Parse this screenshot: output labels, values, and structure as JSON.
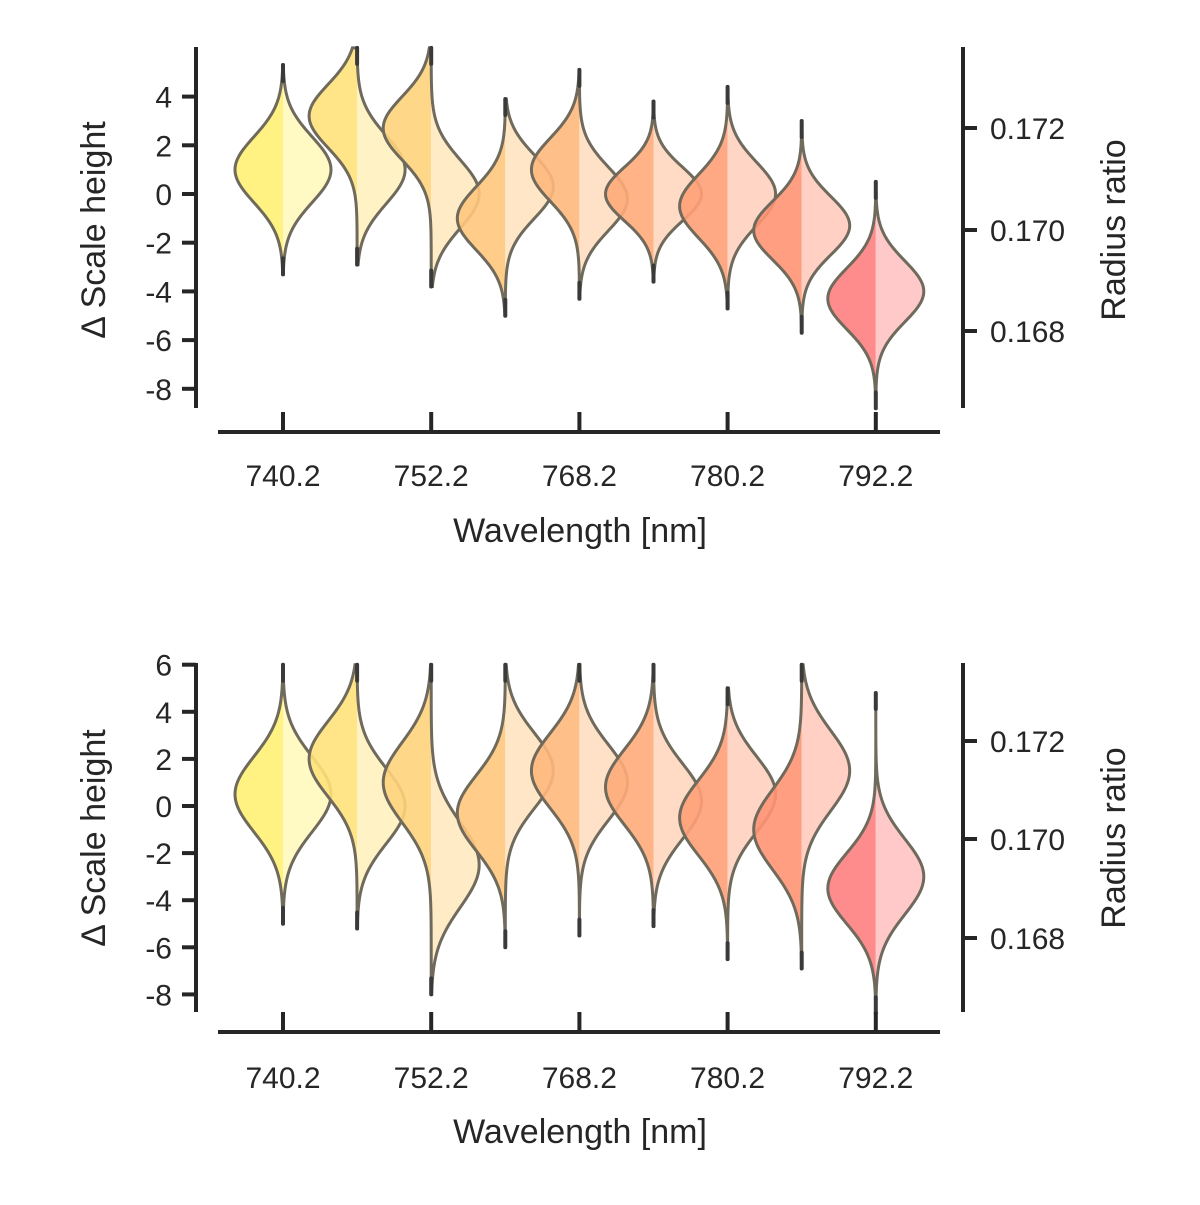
{
  "chart_data": [
    {
      "type": "violin",
      "panel": "top",
      "xlabel": "Wavelength [nm]",
      "ylabel": "Δ Scale height",
      "ylabel_right": "Radius ratio",
      "ylim": [
        -8.8,
        6.0
      ],
      "yticks": [
        4,
        2,
        0,
        -2,
        -4,
        -6,
        -8
      ],
      "right_ticks": [
        "0.172",
        "0.170",
        "0.168"
      ],
      "x_tick_labels": [
        "740.2",
        "752.2",
        "768.2",
        "780.2",
        "792.2"
      ],
      "colors": [
        "#fff176",
        "#ffe27a",
        "#ffd37b",
        "#ffc67c",
        "#ffb87c",
        "#ffab79",
        "#ffa077",
        "#ff9373",
        "#ff8080"
      ],
      "violins": [
        {
          "x_index": 0,
          "min": -3.3,
          "max": 5.3,
          "left_mode": 1.0,
          "left_sigma": 1.35,
          "right_mode": 1.0,
          "right_sigma": 1.35
        },
        {
          "x_index": 1,
          "min": -2.9,
          "max": 6.0,
          "left_mode": 3.2,
          "left_sigma": 1.3,
          "right_mode": 1.0,
          "right_sigma": 1.4
        },
        {
          "x_index": 2,
          "min": -3.8,
          "max": 6.0,
          "left_mode": 2.7,
          "left_sigma": 1.3,
          "right_mode": 0.0,
          "right_sigma": 1.4
        },
        {
          "x_index": 3,
          "min": -5.0,
          "max": 3.9,
          "left_mode": -1.0,
          "left_sigma": 1.3,
          "right_mode": 0.3,
          "right_sigma": 1.3
        },
        {
          "x_index": 4,
          "min": -4.3,
          "max": 5.1,
          "left_mode": 1.0,
          "left_sigma": 1.3,
          "right_mode": -0.2,
          "right_sigma": 1.3
        },
        {
          "x_index": 5,
          "min": -3.6,
          "max": 3.8,
          "left_mode": 0.0,
          "left_sigma": 1.1,
          "right_mode": 0.0,
          "right_sigma": 1.1
        },
        {
          "x_index": 6,
          "min": -4.7,
          "max": 4.4,
          "left_mode": -0.5,
          "left_sigma": 1.3,
          "right_mode": 0.0,
          "right_sigma": 1.3
        },
        {
          "x_index": 7,
          "min": -5.7,
          "max": 3.0,
          "left_mode": -1.5,
          "left_sigma": 1.2,
          "right_mode": -1.3,
          "right_sigma": 1.2
        },
        {
          "x_index": 8,
          "min": -8.8,
          "max": 0.5,
          "left_mode": -4.3,
          "left_sigma": 1.25,
          "right_mode": -4.0,
          "right_sigma": 1.25
        }
      ]
    },
    {
      "type": "violin",
      "panel": "bottom",
      "xlabel": "Wavelength [nm]",
      "ylabel": "Δ Scale height",
      "ylabel_right": "Radius ratio",
      "ylim": [
        -8.8,
        6.0
      ],
      "yticks": [
        6,
        4,
        2,
        0,
        -2,
        -4,
        -6,
        -8
      ],
      "right_ticks": [
        "0.172",
        "0.170",
        "0.168"
      ],
      "x_tick_labels": [
        "740.2",
        "752.2",
        "768.2",
        "780.2",
        "792.2"
      ],
      "colors": [
        "#fff176",
        "#ffe27a",
        "#ffd37b",
        "#ffc67c",
        "#ffb87c",
        "#ffab79",
        "#ffa077",
        "#ff9373",
        "#ff8080"
      ],
      "violins": [
        {
          "x_index": 0,
          "min": -5.0,
          "max": 6.0,
          "left_mode": 0.5,
          "left_sigma": 1.6,
          "right_mode": 0.5,
          "right_sigma": 1.6
        },
        {
          "x_index": 1,
          "min": -5.2,
          "max": 6.0,
          "left_mode": 2.0,
          "left_sigma": 1.6,
          "right_mode": 0.0,
          "right_sigma": 1.6
        },
        {
          "x_index": 2,
          "min": -8.0,
          "max": 6.0,
          "left_mode": 1.0,
          "left_sigma": 1.7,
          "right_mode": -2.5,
          "right_sigma": 1.8
        },
        {
          "x_index": 3,
          "min": -6.0,
          "max": 6.0,
          "left_mode": -0.3,
          "left_sigma": 1.6,
          "right_mode": 1.5,
          "right_sigma": 1.6
        },
        {
          "x_index": 4,
          "min": -5.5,
          "max": 6.0,
          "left_mode": 1.5,
          "left_sigma": 1.6,
          "right_mode": 1.0,
          "right_sigma": 1.6
        },
        {
          "x_index": 5,
          "min": -5.1,
          "max": 6.0,
          "left_mode": 0.8,
          "left_sigma": 1.6,
          "right_mode": 0.2,
          "right_sigma": 1.6
        },
        {
          "x_index": 6,
          "min": -6.5,
          "max": 5.0,
          "left_mode": -0.5,
          "left_sigma": 1.6,
          "right_mode": 0.5,
          "right_sigma": 1.6
        },
        {
          "x_index": 7,
          "min": -6.9,
          "max": 6.0,
          "left_mode": -1.0,
          "left_sigma": 1.7,
          "right_mode": 1.5,
          "right_sigma": 1.7
        },
        {
          "x_index": 8,
          "min": -8.8,
          "max": 4.8,
          "left_mode": -3.5,
          "left_sigma": 1.5,
          "right_mode": -3.0,
          "right_sigma": 1.6
        }
      ]
    }
  ]
}
